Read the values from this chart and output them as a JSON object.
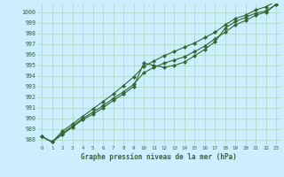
{
  "title": "Graphe pression niveau de la mer (hPa)",
  "bg_color": "#cceeff",
  "grid_color": "#b0d8c8",
  "line_color": "#336633",
  "marker_color": "#336633",
  "ylim": [
    987.5,
    1000.8
  ],
  "xlim": [
    -0.5,
    23.5
  ],
  "yticks": [
    988,
    989,
    990,
    991,
    992,
    993,
    994,
    995,
    996,
    997,
    998,
    999,
    1000
  ],
  "xticks": [
    0,
    1,
    2,
    3,
    4,
    5,
    6,
    7,
    8,
    9,
    10,
    11,
    12,
    13,
    14,
    15,
    16,
    17,
    18,
    19,
    20,
    21,
    22,
    23
  ],
  "series": [
    [
      988.3,
      987.8,
      988.5,
      989.2,
      989.9,
      990.4,
      991.0,
      991.7,
      992.3,
      993.0,
      995.2,
      995.0,
      994.8,
      995.0,
      995.3,
      995.9,
      996.5,
      997.2,
      998.5,
      999.1,
      999.5,
      999.9,
      1000.1,
      1000.7
    ],
    [
      988.3,
      987.8,
      988.6,
      989.3,
      990.0,
      990.6,
      991.2,
      991.9,
      992.5,
      993.2,
      994.3,
      994.8,
      995.2,
      995.5,
      995.8,
      996.3,
      996.8,
      997.5,
      998.1,
      998.8,
      999.2,
      999.7,
      1000.0,
      1000.7
    ],
    [
      988.3,
      987.8,
      988.8,
      989.5,
      990.2,
      990.9,
      991.6,
      992.3,
      993.1,
      993.9,
      994.9,
      995.4,
      995.9,
      996.3,
      996.7,
      997.1,
      997.6,
      998.1,
      998.8,
      999.4,
      999.7,
      1000.2,
      1000.5,
      1001.0
    ]
  ]
}
